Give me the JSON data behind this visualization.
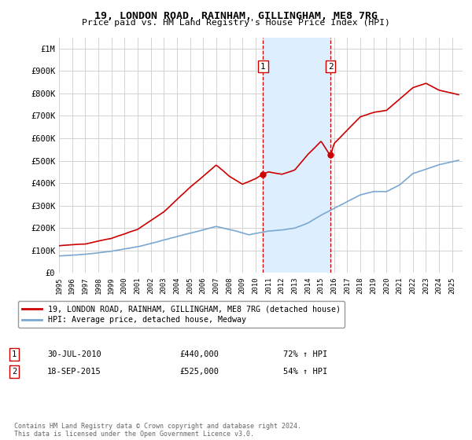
{
  "title": "19, LONDON ROAD, RAINHAM, GILLINGHAM, ME8 7RG",
  "subtitle": "Price paid vs. HM Land Registry's House Price Index (HPI)",
  "ylabel_ticks": [
    "£0",
    "£100K",
    "£200K",
    "£300K",
    "£400K",
    "£500K",
    "£600K",
    "£700K",
    "£800K",
    "£900K",
    "£1M"
  ],
  "ytick_values": [
    0,
    100000,
    200000,
    300000,
    400000,
    500000,
    600000,
    700000,
    800000,
    900000,
    1000000
  ],
  "ylim": [
    0,
    1050000
  ],
  "xlim_start": 1995.0,
  "xlim_end": 2025.8,
  "sale1_x": 2010.58,
  "sale1_y": 440000,
  "sale1_label": "1",
  "sale1_date": "30-JUL-2010",
  "sale1_price": "£440,000",
  "sale1_hpi": "72% ↑ HPI",
  "sale2_x": 2015.72,
  "sale2_y": 525000,
  "sale2_label": "2",
  "sale2_date": "18-SEP-2015",
  "sale2_price": "£525,000",
  "sale2_hpi": "54% ↑ HPI",
  "hpi_color": "#7aa8d2",
  "price_color": "#cc0000",
  "shade_color": "#ddeeff",
  "background_color": "#ffffff",
  "grid_color": "#cccccc",
  "legend_label_price": "19, LONDON ROAD, RAINHAM, GILLINGHAM, ME8 7RG (detached house)",
  "legend_label_hpi": "HPI: Average price, detached house, Medway",
  "footer": "Contains HM Land Registry data © Crown copyright and database right 2024.\nThis data is licensed under the Open Government Licence v3.0."
}
